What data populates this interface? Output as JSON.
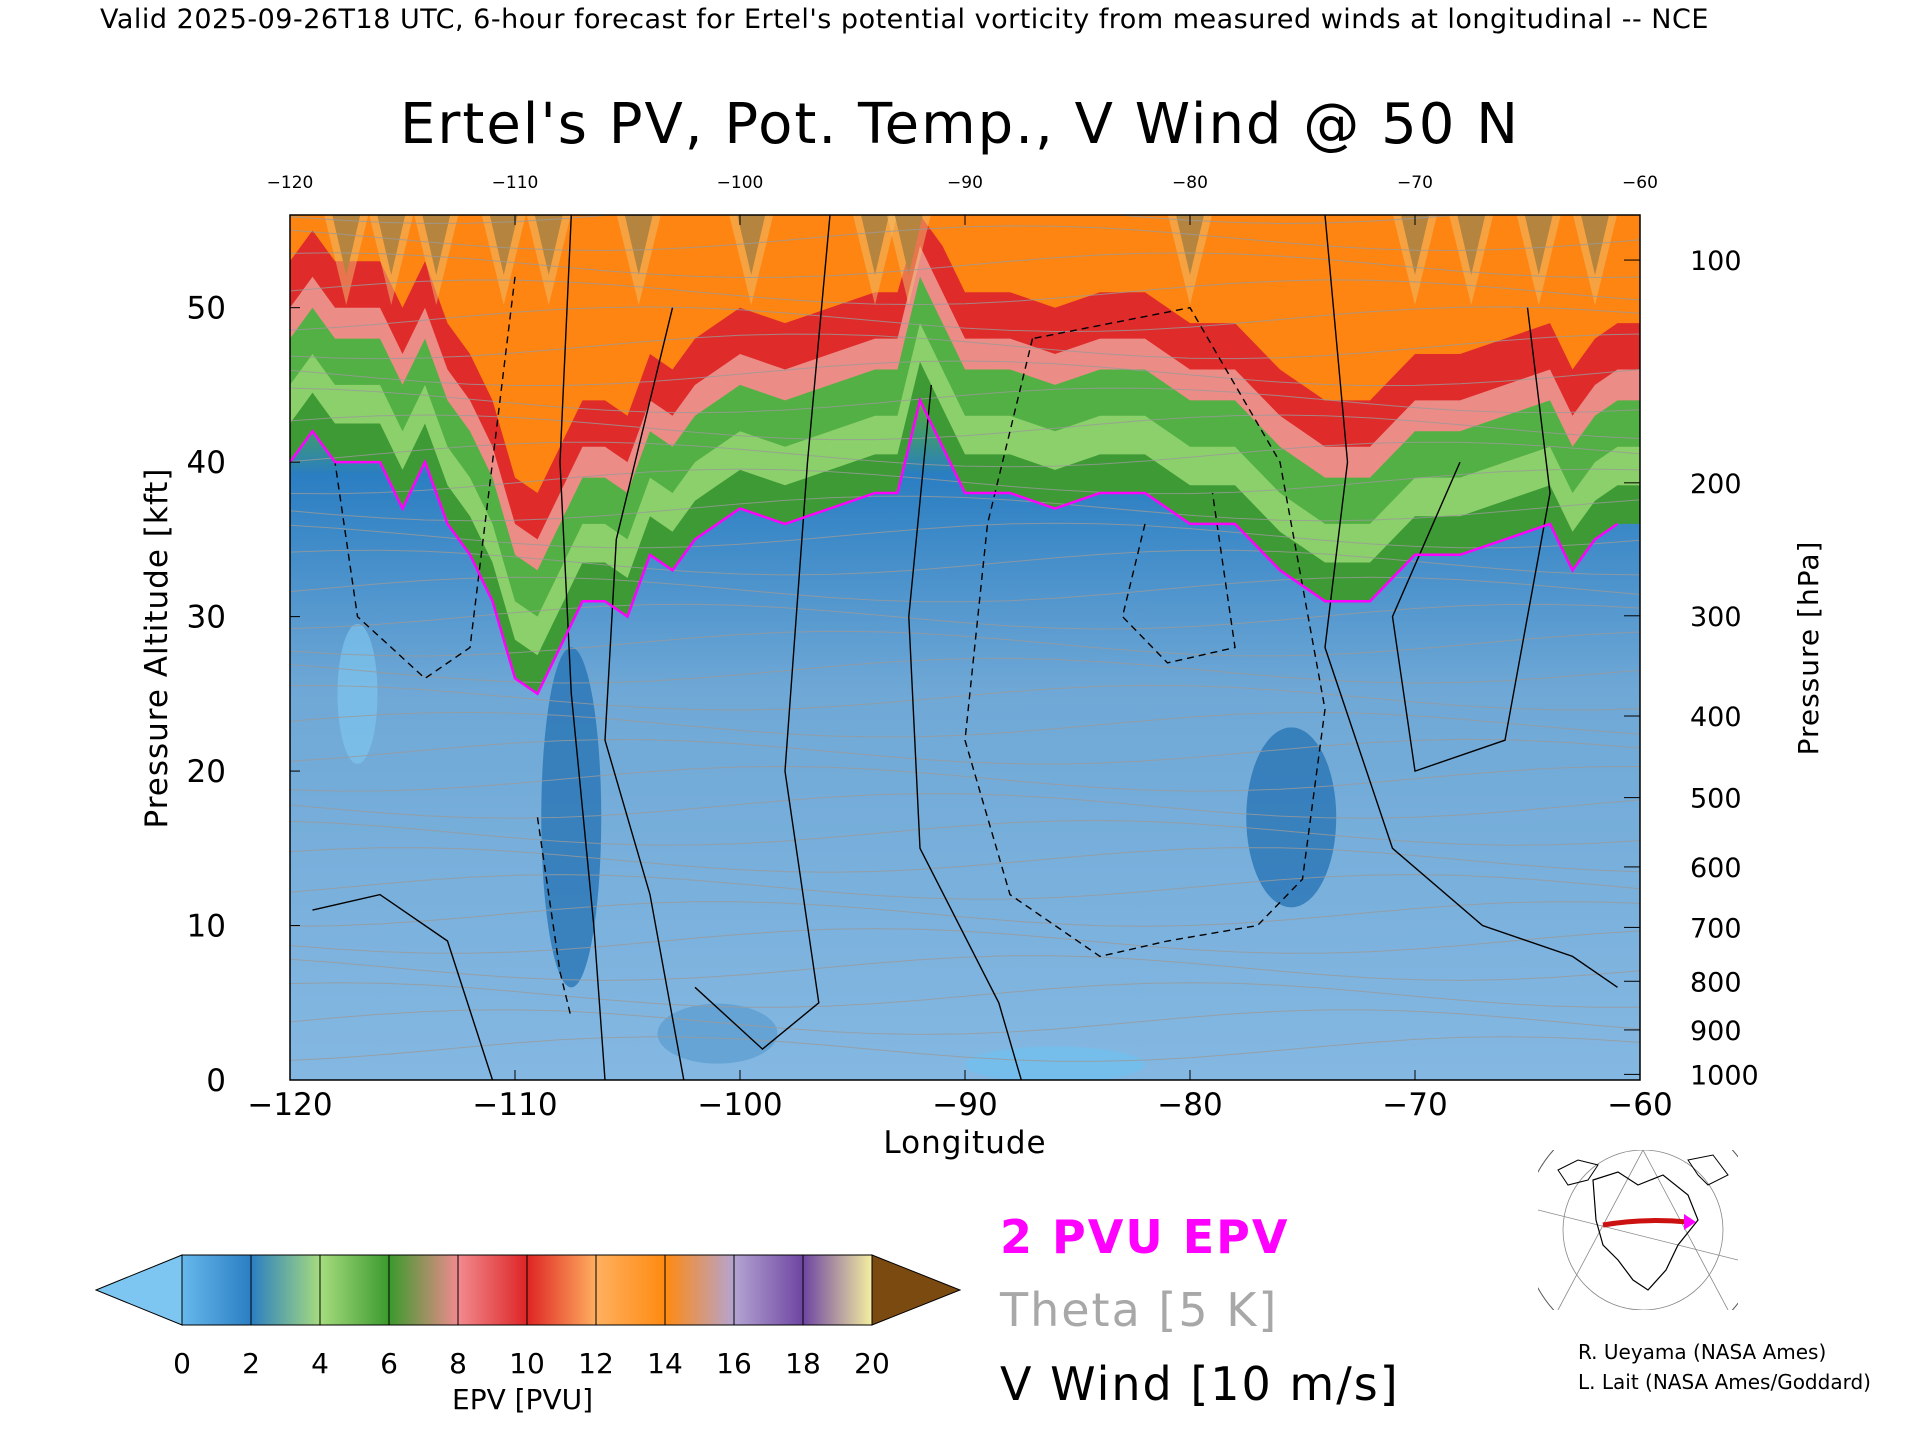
{
  "header": "Valid 2025-09-26T18 UTC, 6-hour forecast for Ertel's potential vorticity from measured winds at longitudinal -- NCE",
  "chart_data": {
    "type": "heatmap",
    "title": "Ertel's PV, Pot. Temp., V Wind @ 50 N",
    "xlabel": "Longitude",
    "ylabel": "Pressure Altitude [kft]",
    "y2label": "Pressure [hPa]",
    "xlim": [
      -120,
      -60
    ],
    "ylim": [
      0,
      56
    ],
    "x_ticks": [
      -120,
      -110,
      -100,
      -90,
      -80,
      -70,
      -60
    ],
    "y_ticks": [
      0,
      10,
      20,
      30,
      40,
      50
    ],
    "pressure_ticks": [
      100,
      200,
      300,
      400,
      500,
      600,
      700,
      800,
      900,
      1000
    ],
    "tropopause_2pvu_kft": [
      [
        -120,
        40
      ],
      [
        -119,
        42
      ],
      [
        -118,
        40
      ],
      [
        -116,
        40
      ],
      [
        -115,
        37
      ],
      [
        -114,
        40
      ],
      [
        -113,
        36
      ],
      [
        -112,
        34
      ],
      [
        -111,
        31
      ],
      [
        -110,
        26
      ],
      [
        -109,
        25
      ],
      [
        -108,
        28
      ],
      [
        -107,
        31
      ],
      [
        -106,
        31
      ],
      [
        -105,
        30
      ],
      [
        -104,
        34
      ],
      [
        -103,
        33
      ],
      [
        -102,
        35
      ],
      [
        -101,
        36
      ],
      [
        -100,
        37
      ],
      [
        -98,
        36
      ],
      [
        -96,
        37
      ],
      [
        -94,
        38
      ],
      [
        -93,
        38
      ],
      [
        -92,
        44
      ],
      [
        -91,
        41
      ],
      [
        -90,
        38
      ],
      [
        -88,
        38
      ],
      [
        -86,
        37
      ],
      [
        -84,
        38
      ],
      [
        -82,
        38
      ],
      [
        -80,
        36
      ],
      [
        -78,
        36
      ],
      [
        -76,
        33
      ],
      [
        -74,
        31
      ],
      [
        -72,
        31
      ],
      [
        -70,
        34
      ],
      [
        -68,
        34
      ],
      [
        -66,
        35
      ],
      [
        -64,
        36
      ],
      [
        -63,
        33
      ],
      [
        -62,
        35
      ],
      [
        -61,
        36
      ]
    ],
    "colorbar": {
      "label": "EPV [PVU]",
      "ticks": [
        0,
        2,
        4,
        6,
        8,
        10,
        12,
        14,
        16,
        18,
        20
      ],
      "colors": [
        "#66b8ec",
        "#2a7ec2",
        "#a7dc7e",
        "#3a9a2c",
        "#f18a8f",
        "#de2424",
        "#ffb060",
        "#ff8a10",
        "#b4a4d2",
        "#6e44a2",
        "#f6f0a0",
        "#7a4a10"
      ]
    },
    "legend": [
      {
        "name": "2 PVU EPV",
        "color": "#ff00ff"
      },
      {
        "name": "Theta [5 K]",
        "color": "#a8a8a8"
      },
      {
        "name": "V Wind [10 m/s]",
        "color": "#000000"
      }
    ]
  },
  "credits": [
    "R. Ueyama (NASA Ames)",
    "L. Lait (NASA Ames/Goddard)"
  ]
}
